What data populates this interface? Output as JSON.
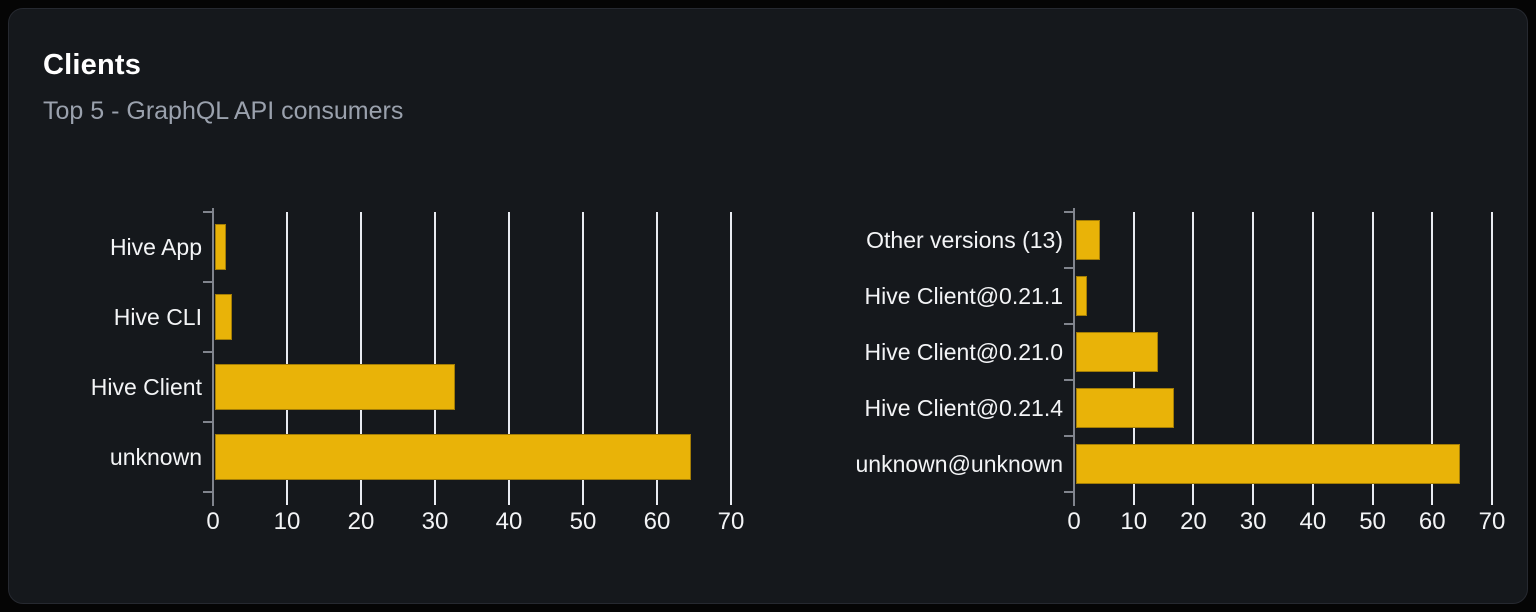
{
  "header": {
    "title": "Clients",
    "subtitle": "Top 5 - GraphQL API consumers"
  },
  "colors": {
    "page_background": "#050505",
    "card_background": "#15181c",
    "card_border": "#262930",
    "bar": "#e9b308",
    "gridline": "#e8ebf1",
    "axis": "#80848d",
    "title_text": "#ffffff",
    "subtitle_text": "#9aa1ad",
    "label_text": "#f3f4f6"
  },
  "chart_data": [
    {
      "type": "bar",
      "orientation": "horizontal",
      "name": "clients-by-name",
      "title": "Clients",
      "subtitle": "Top 5 - GraphQL API consumers",
      "categories": [
        "Hive App",
        "Hive CLI",
        "Hive Client",
        "unknown"
      ],
      "values": [
        1.5,
        2.3,
        32.4,
        64.3
      ],
      "xlabel": "",
      "ylabel": "",
      "xlim": [
        0,
        70
      ],
      "xticks": [
        0,
        10,
        20,
        30,
        40,
        50,
        60,
        70
      ],
      "grid": true,
      "legend": false
    },
    {
      "type": "bar",
      "orientation": "horizontal",
      "name": "clients-by-version",
      "title": "Clients",
      "subtitle": "Top 5 - GraphQL API consumers",
      "categories": [
        "Other versions (13)",
        "Hive Client@0.21.1",
        "Hive Client@0.21.0",
        "Hive Client@0.21.4",
        "unknown@unknown"
      ],
      "values": [
        4.0,
        1.8,
        13.7,
        16.4,
        64.3
      ],
      "xlabel": "",
      "ylabel": "",
      "xlim": [
        0,
        70
      ],
      "xticks": [
        0,
        10,
        20,
        30,
        40,
        50,
        60,
        70
      ],
      "grid": true,
      "legend": false
    }
  ]
}
